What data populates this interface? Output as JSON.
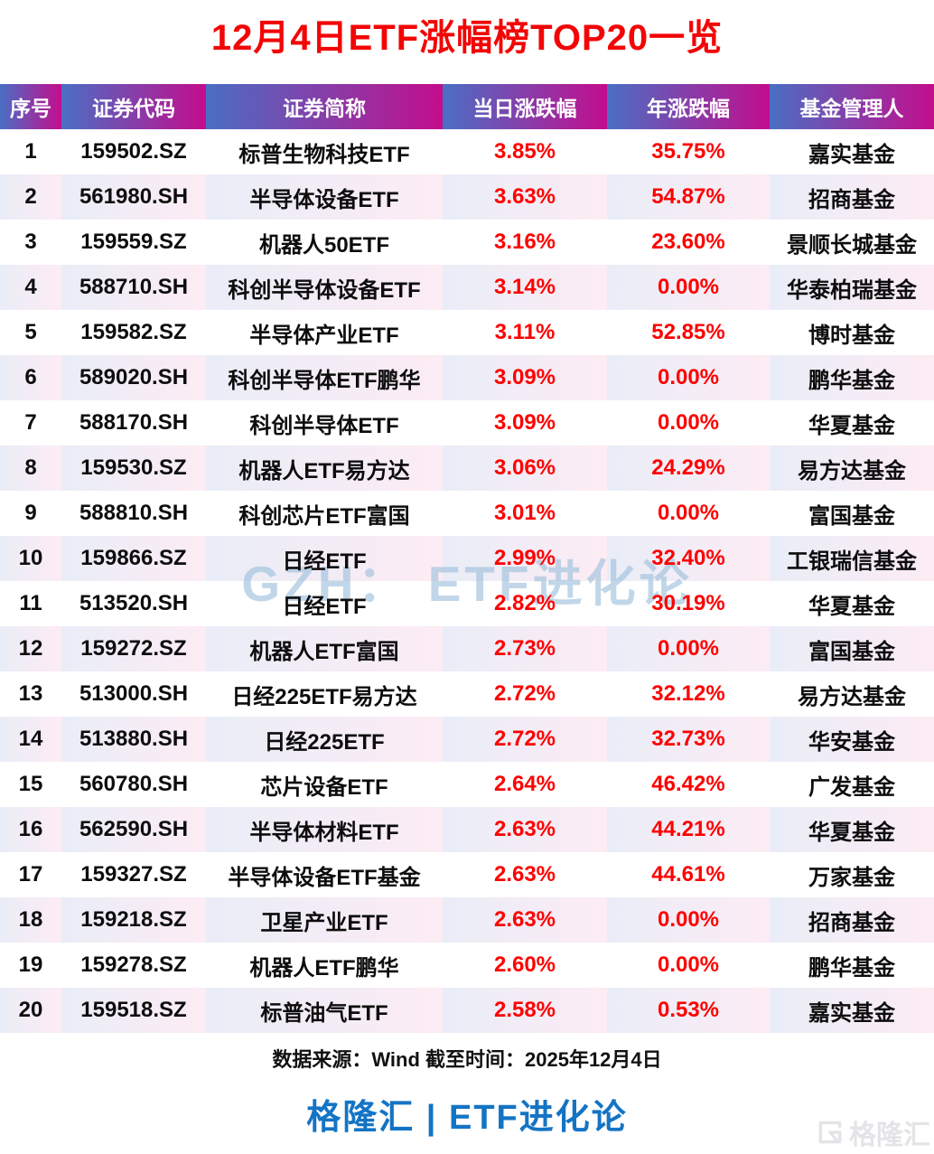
{
  "title": "12月4日ETF涨幅榜TOP20一览",
  "chart_data": {
    "type": "table",
    "title": "12月4日ETF涨幅榜TOP20一览",
    "columns": [
      "序号",
      "证券代码",
      "证券简称",
      "当日涨跌幅",
      "年涨跌幅",
      "基金管理人"
    ],
    "rows": [
      {
        "no": "1",
        "code": "159502.SZ",
        "name": "标普生物科技ETF",
        "daily": "3.85%",
        "yearly": "35.75%",
        "manager": "嘉实基金"
      },
      {
        "no": "2",
        "code": "561980.SH",
        "name": "半导体设备ETF",
        "daily": "3.63%",
        "yearly": "54.87%",
        "manager": "招商基金"
      },
      {
        "no": "3",
        "code": "159559.SZ",
        "name": "机器人50ETF",
        "daily": "3.16%",
        "yearly": "23.60%",
        "manager": "景顺长城基金"
      },
      {
        "no": "4",
        "code": "588710.SH",
        "name": "科创半导体设备ETF",
        "daily": "3.14%",
        "yearly": "0.00%",
        "manager": "华泰柏瑞基金"
      },
      {
        "no": "5",
        "code": "159582.SZ",
        "name": "半导体产业ETF",
        "daily": "3.11%",
        "yearly": "52.85%",
        "manager": "博时基金"
      },
      {
        "no": "6",
        "code": "589020.SH",
        "name": "科创半导体ETF鹏华",
        "daily": "3.09%",
        "yearly": "0.00%",
        "manager": "鹏华基金"
      },
      {
        "no": "7",
        "code": "588170.SH",
        "name": "科创半导体ETF",
        "daily": "3.09%",
        "yearly": "0.00%",
        "manager": "华夏基金"
      },
      {
        "no": "8",
        "code": "159530.SZ",
        "name": "机器人ETF易方达",
        "daily": "3.06%",
        "yearly": "24.29%",
        "manager": "易方达基金"
      },
      {
        "no": "9",
        "code": "588810.SH",
        "name": "科创芯片ETF富国",
        "daily": "3.01%",
        "yearly": "0.00%",
        "manager": "富国基金"
      },
      {
        "no": "10",
        "code": "159866.SZ",
        "name": "日经ETF",
        "daily": "2.99%",
        "yearly": "32.40%",
        "manager": "工银瑞信基金"
      },
      {
        "no": "11",
        "code": "513520.SH",
        "name": "日经ETF",
        "daily": "2.82%",
        "yearly": "30.19%",
        "manager": "华夏基金"
      },
      {
        "no": "12",
        "code": "159272.SZ",
        "name": "机器人ETF富国",
        "daily": "2.73%",
        "yearly": "0.00%",
        "manager": "富国基金"
      },
      {
        "no": "13",
        "code": "513000.SH",
        "name": "日经225ETF易方达",
        "daily": "2.72%",
        "yearly": "32.12%",
        "manager": "易方达基金"
      },
      {
        "no": "14",
        "code": "513880.SH",
        "name": "日经225ETF",
        "daily": "2.72%",
        "yearly": "32.73%",
        "manager": "华安基金"
      },
      {
        "no": "15",
        "code": "560780.SH",
        "name": "芯片设备ETF",
        "daily": "2.64%",
        "yearly": "46.42%",
        "manager": "广发基金"
      },
      {
        "no": "16",
        "code": "562590.SH",
        "name": "半导体材料ETF",
        "daily": "2.63%",
        "yearly": "44.21%",
        "manager": "华夏基金"
      },
      {
        "no": "17",
        "code": "159327.SZ",
        "name": "半导体设备ETF基金",
        "daily": "2.63%",
        "yearly": "44.61%",
        "manager": "万家基金"
      },
      {
        "no": "18",
        "code": "159218.SZ",
        "name": "卫星产业ETF",
        "daily": "2.63%",
        "yearly": "0.00%",
        "manager": "招商基金"
      },
      {
        "no": "19",
        "code": "159278.SZ",
        "name": "机器人ETF鹏华",
        "daily": "2.60%",
        "yearly": "0.00%",
        "manager": "鹏华基金"
      },
      {
        "no": "20",
        "code": "159518.SZ",
        "name": "标普油气ETF",
        "daily": "2.58%",
        "yearly": "0.53%",
        "manager": "嘉实基金"
      }
    ]
  },
  "watermark": {
    "center": "GZH： ETF进化论",
    "corner": "格隆汇"
  },
  "footer": {
    "source": "数据来源：Wind 截至时间：2025年12月4日",
    "brand": "格隆汇 | ETF进化论"
  },
  "colors": {
    "title_red": "#f30505",
    "accent_red": "#fe0000",
    "header_gradient_start": "#4a6fc4",
    "header_gradient_end": "#c30d8d",
    "alt_row_start": "#e9edf7",
    "alt_row_end": "#fdecf4",
    "brand_blue": "#1474c4",
    "watermark_blue": "#9cbfdc"
  }
}
